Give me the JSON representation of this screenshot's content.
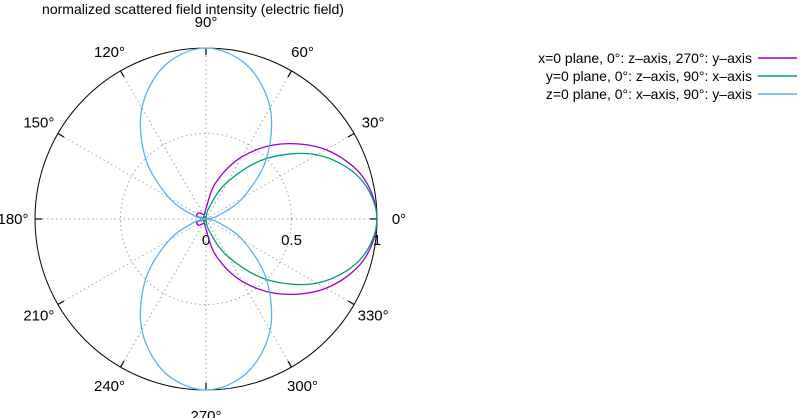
{
  "chart_data": {
    "type": "line",
    "coordinate_system": "polar",
    "title": "normalized scattered field intensity (electric field)",
    "radial_ticks": [
      "0",
      "0.5",
      "1"
    ],
    "radial_range": [
      0,
      1
    ],
    "angle_ticks": [
      "0°",
      "30°",
      "60°",
      "90°",
      "120°",
      "150°",
      "180°",
      "210°",
      "240°",
      "270°",
      "300°",
      "330°"
    ],
    "grid": true,
    "legend_position": "top-right",
    "series": [
      {
        "name": "x=0 plane, 0°: z–axis, 270°: y–axis",
        "color": "#9400d3",
        "theta_deg": [
          0,
          15,
          30,
          45,
          60,
          75,
          90,
          105,
          120,
          135,
          150,
          165,
          180,
          195,
          210,
          225,
          240,
          255,
          270,
          285,
          300,
          315,
          330,
          345,
          360
        ],
        "r": [
          1.0,
          0.95,
          0.81,
          0.62,
          0.42,
          0.22,
          0.06,
          0.03,
          0.03,
          0.05,
          0.06,
          0.05,
          0.0,
          0.05,
          0.06,
          0.05,
          0.03,
          0.03,
          0.06,
          0.22,
          0.42,
          0.62,
          0.81,
          0.95,
          1.0
        ]
      },
      {
        "name": "y=0 plane, 0°: z–axis, 90°: x–axis",
        "color": "#009e73",
        "theta_deg": [
          0,
          15,
          30,
          45,
          60,
          75,
          90,
          105,
          120,
          135,
          150,
          165,
          180,
          195,
          210,
          225,
          240,
          255,
          270,
          285,
          300,
          315,
          330,
          345,
          360
        ],
        "r": [
          1.0,
          0.93,
          0.75,
          0.5,
          0.25,
          0.07,
          0.0,
          0.01,
          0.02,
          0.02,
          0.01,
          0.0,
          0.0,
          0.0,
          0.01,
          0.02,
          0.02,
          0.01,
          0.0,
          0.07,
          0.25,
          0.5,
          0.75,
          0.93,
          1.0
        ]
      },
      {
        "name": "z=0 plane, 0°: x–axis, 90°: y–axis",
        "color": "#56b4e9",
        "theta_deg": [
          0,
          15,
          30,
          45,
          60,
          75,
          90,
          105,
          120,
          135,
          150,
          165,
          180,
          195,
          210,
          225,
          240,
          255,
          270,
          285,
          300,
          315,
          330,
          345,
          360
        ],
        "r": [
          0.0,
          0.07,
          0.25,
          0.5,
          0.75,
          0.93,
          1.0,
          0.93,
          0.75,
          0.5,
          0.25,
          0.07,
          0.0,
          0.07,
          0.25,
          0.5,
          0.75,
          0.93,
          1.0,
          0.93,
          0.75,
          0.5,
          0.25,
          0.07,
          0.0
        ]
      }
    ]
  }
}
